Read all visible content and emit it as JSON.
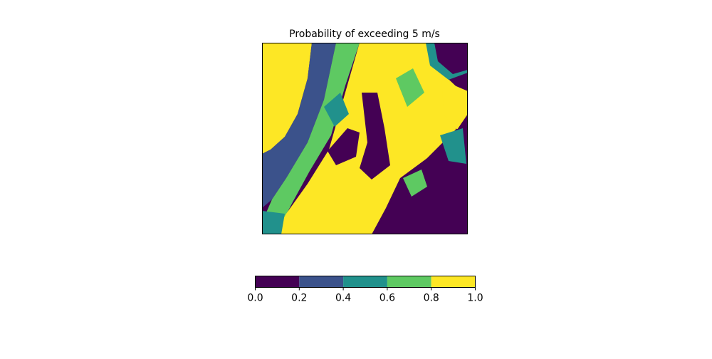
{
  "chart_data": {
    "type": "filled-map",
    "title": "Probability of exceeding 5 m/s",
    "colors": [
      "#440154",
      "#3b528b",
      "#21918c",
      "#5ec962",
      "#fde725"
    ],
    "xlim": [
      0,
      1
    ],
    "xticks": [
      {
        "value": 0,
        "label": "0.0"
      },
      0.2,
      0.4,
      0.6,
      0.8,
      {
        "value": 1,
        "label": "1.0"
      }
    ]
  }
}
